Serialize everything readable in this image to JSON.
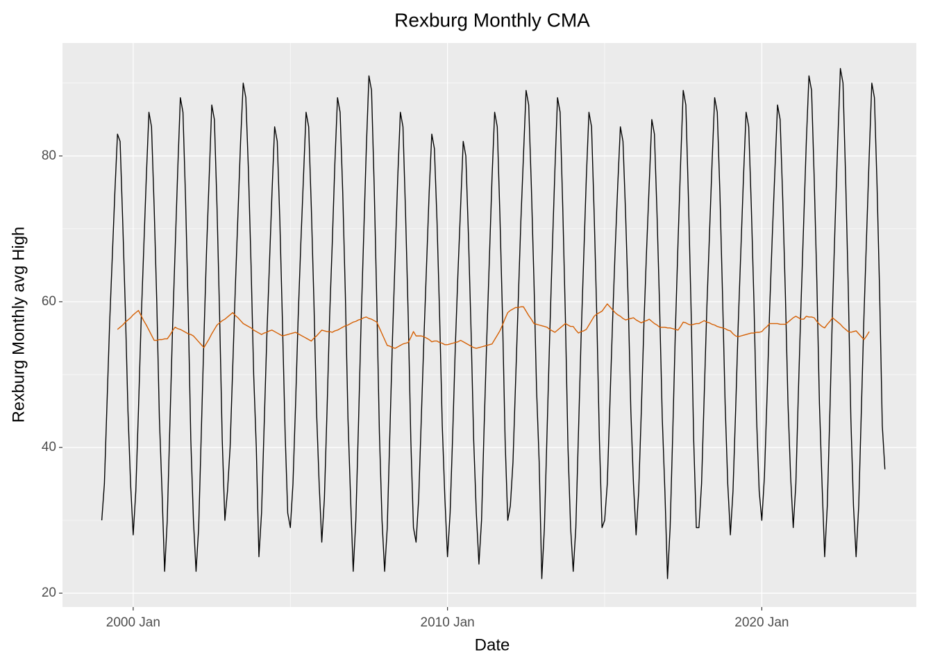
{
  "chart_data": {
    "type": "line",
    "title": "Rexburg Monthly CMA",
    "x_label": "Date",
    "y_label": "Rexburg Monthly avg High",
    "x": [
      "1999 Jan",
      "1999 Feb",
      "1999 Mar",
      "1999 Apr",
      "1999 May",
      "1999 Jun",
      "1999 Jul",
      "1999 Aug",
      "1999 Sep",
      "1999 Oct",
      "1999 Nov",
      "1999 Dec",
      "2000 Jan",
      "2000 Feb",
      "2000 Mar",
      "2000 Apr",
      "2000 May",
      "2000 Jun",
      "2000 Jul",
      "2000 Aug",
      "2000 Sep",
      "2000 Oct",
      "2000 Nov",
      "2000 Dec",
      "2001 Jan",
      "2001 Feb",
      "2001 Mar",
      "2001 Apr",
      "2001 May",
      "2001 Jun",
      "2001 Jul",
      "2001 Aug",
      "2001 Sep",
      "2001 Oct",
      "2001 Nov",
      "2001 Dec",
      "2002 Jan",
      "2002 Feb",
      "2002 Mar",
      "2002 Apr",
      "2002 May",
      "2002 Jun",
      "2002 Jul",
      "2002 Aug",
      "2002 Sep",
      "2002 Oct",
      "2002 Nov",
      "2002 Dec",
      "2003 Jan",
      "2003 Feb",
      "2003 Mar",
      "2003 Apr",
      "2003 May",
      "2003 Jun",
      "2003 Jul",
      "2003 Aug",
      "2003 Sep",
      "2003 Oct",
      "2003 Nov",
      "2003 Dec",
      "2004 Jan",
      "2004 Feb",
      "2004 Mar",
      "2004 Apr",
      "2004 May",
      "2004 Jun",
      "2004 Jul",
      "2004 Aug",
      "2004 Sep",
      "2004 Oct",
      "2004 Nov",
      "2004 Dec",
      "2005 Jan",
      "2005 Feb",
      "2005 Mar",
      "2005 Apr",
      "2005 May",
      "2005 Jun",
      "2005 Jul",
      "2005 Aug",
      "2005 Sep",
      "2005 Oct",
      "2005 Nov",
      "2005 Dec",
      "2006 Jan",
      "2006 Feb",
      "2006 Mar",
      "2006 Apr",
      "2006 May",
      "2006 Jun",
      "2006 Jul",
      "2006 Aug",
      "2006 Sep",
      "2006 Oct",
      "2006 Nov",
      "2006 Dec",
      "2007 Jan",
      "2007 Feb",
      "2007 Mar",
      "2007 Apr",
      "2007 May",
      "2007 Jun",
      "2007 Jul",
      "2007 Aug",
      "2007 Sep",
      "2007 Oct",
      "2007 Nov",
      "2007 Dec",
      "2008 Jan",
      "2008 Feb",
      "2008 Mar",
      "2008 Apr",
      "2008 May",
      "2008 Jun",
      "2008 Jul",
      "2008 Aug",
      "2008 Sep",
      "2008 Oct",
      "2008 Nov",
      "2008 Dec",
      "2009 Jan",
      "2009 Feb",
      "2009 Mar",
      "2009 Apr",
      "2009 May",
      "2009 Jun",
      "2009 Jul",
      "2009 Aug",
      "2009 Sep",
      "2009 Oct",
      "2009 Nov",
      "2009 Dec",
      "2010 Jan",
      "2010 Feb",
      "2010 Mar",
      "2010 Apr",
      "2010 May",
      "2010 Jun",
      "2010 Jul",
      "2010 Aug",
      "2010 Sep",
      "2010 Oct",
      "2010 Nov",
      "2010 Dec",
      "2011 Jan",
      "2011 Feb",
      "2011 Mar",
      "2011 Apr",
      "2011 May",
      "2011 Jun",
      "2011 Jul",
      "2011 Aug",
      "2011 Sep",
      "2011 Oct",
      "2011 Nov",
      "2011 Dec",
      "2012 Jan",
      "2012 Feb",
      "2012 Mar",
      "2012 Apr",
      "2012 May",
      "2012 Jun",
      "2012 Jul",
      "2012 Aug",
      "2012 Sep",
      "2012 Oct",
      "2012 Nov",
      "2012 Dec",
      "2013 Jan",
      "2013 Feb",
      "2013 Mar",
      "2013 Apr",
      "2013 May",
      "2013 Jun",
      "2013 Jul",
      "2013 Aug",
      "2013 Sep",
      "2013 Oct",
      "2013 Nov",
      "2013 Dec",
      "2014 Jan",
      "2014 Feb",
      "2014 Mar",
      "2014 Apr",
      "2014 May",
      "2014 Jun",
      "2014 Jul",
      "2014 Aug",
      "2014 Sep",
      "2014 Oct",
      "2014 Nov",
      "2014 Dec",
      "2015 Jan",
      "2015 Feb",
      "2015 Mar",
      "2015 Apr",
      "2015 May",
      "2015 Jun",
      "2015 Jul",
      "2015 Aug",
      "2015 Sep",
      "2015 Oct",
      "2015 Nov",
      "2015 Dec",
      "2016 Jan",
      "2016 Feb",
      "2016 Mar",
      "2016 Apr",
      "2016 May",
      "2016 Jun",
      "2016 Jul",
      "2016 Aug",
      "2016 Sep",
      "2016 Oct",
      "2016 Nov",
      "2016 Dec",
      "2017 Jan",
      "2017 Feb",
      "2017 Mar",
      "2017 Apr",
      "2017 May",
      "2017 Jun",
      "2017 Jul",
      "2017 Aug",
      "2017 Sep",
      "2017 Oct",
      "2017 Nov",
      "2017 Dec",
      "2018 Jan",
      "2018 Feb",
      "2018 Mar",
      "2018 Apr",
      "2018 May",
      "2018 Jun",
      "2018 Jul",
      "2018 Aug",
      "2018 Sep",
      "2018 Oct",
      "2018 Nov",
      "2018 Dec",
      "2019 Jan",
      "2019 Feb",
      "2019 Mar",
      "2019 Apr",
      "2019 May",
      "2019 Jun",
      "2019 Jul",
      "2019 Aug",
      "2019 Sep",
      "2019 Oct",
      "2019 Nov",
      "2019 Dec",
      "2020 Jan",
      "2020 Feb",
      "2020 Mar",
      "2020 Apr",
      "2020 May",
      "2020 Jun",
      "2020 Jul",
      "2020 Aug",
      "2020 Sep",
      "2020 Oct",
      "2020 Nov",
      "2020 Dec",
      "2021 Jan",
      "2021 Feb",
      "2021 Mar",
      "2021 Apr",
      "2021 May",
      "2021 Jun",
      "2021 Jul",
      "2021 Aug",
      "2021 Sep",
      "2021 Oct",
      "2021 Nov",
      "2021 Dec",
      "2022 Jan",
      "2022 Feb",
      "2022 Mar",
      "2022 Apr",
      "2022 May",
      "2022 Jun",
      "2022 Jul",
      "2022 Aug",
      "2022 Sep",
      "2022 Oct",
      "2022 Nov",
      "2022 Dec",
      "2023 Jan",
      "2023 Feb",
      "2023 Mar",
      "2023 Apr",
      "2023 May",
      "2023 Jun",
      "2023 Jul",
      "2023 Aug",
      "2023 Sep",
      "2023 Oct",
      "2023 Nov",
      "2023 Dec"
    ],
    "series": [
      {
        "color": "#000000",
        "values": [
          30,
          35,
          46,
          57,
          66,
          75,
          83,
          82,
          71,
          59,
          45,
          35,
          28,
          34,
          45,
          57,
          67,
          77,
          86,
          84,
          73,
          60,
          44,
          34,
          23,
          30,
          43,
          56,
          67,
          78,
          88,
          86,
          74,
          59,
          41,
          30,
          23,
          29,
          42,
          55,
          67,
          77,
          87,
          85,
          73,
          58,
          41,
          30,
          34,
          40,
          51,
          62,
          72,
          82,
          90,
          88,
          78,
          65,
          50,
          40,
          25,
          31,
          43,
          55,
          65,
          75,
          84,
          82,
          71,
          57,
          42,
          31,
          29,
          35,
          46,
          58,
          68,
          77,
          86,
          84,
          73,
          60,
          45,
          35,
          27,
          33,
          45,
          58,
          68,
          79,
          88,
          86,
          75,
          61,
          44,
          33,
          23,
          30,
          43,
          57,
          69,
          81,
          91,
          89,
          76,
          60,
          42,
          30,
          23,
          29,
          42,
          55,
          66,
          77,
          86,
          84,
          72,
          58,
          41,
          29,
          27,
          33,
          44,
          55,
          65,
          75,
          83,
          81,
          71,
          58,
          43,
          33,
          25,
          31,
          42,
          54,
          64,
          73,
          82,
          80,
          69,
          56,
          41,
          31,
          24,
          30,
          43,
          55,
          66,
          77,
          86,
          84,
          72,
          58,
          41,
          30,
          32,
          38,
          49,
          60,
          71,
          80,
          89,
          87,
          76,
          63,
          48,
          38,
          22,
          29,
          42,
          55,
          67,
          78,
          88,
          86,
          73,
          58,
          40,
          29,
          23,
          29,
          42,
          55,
          66,
          77,
          86,
          84,
          72,
          58,
          41,
          29,
          30,
          35,
          46,
          57,
          67,
          76,
          84,
          82,
          72,
          60,
          45,
          35,
          28,
          34,
          45,
          57,
          67,
          76,
          85,
          83,
          72,
          59,
          44,
          34,
          22,
          29,
          42,
          56,
          68,
          79,
          89,
          87,
          74,
          59,
          41,
          29,
          29,
          35,
          47,
          59,
          69,
          79,
          88,
          86,
          75,
          61,
          46,
          35,
          28,
          34,
          45,
          57,
          67,
          77,
          86,
          84,
          73,
          60,
          44,
          34,
          30,
          36,
          47,
          59,
          69,
          78,
          87,
          85,
          74,
          61,
          46,
          36,
          29,
          35,
          48,
          60,
          71,
          82,
          91,
          89,
          77,
          63,
          46,
          35,
          25,
          32,
          45,
          59,
          71,
          82,
          92,
          90,
          77,
          62,
          44,
          32,
          25,
          32,
          45,
          58,
          69,
          80,
          90,
          88,
          76,
          61,
          43,
          37
        ]
      },
      {
        "color": "#d55e00",
        "values": [
          null,
          null,
          null,
          null,
          null,
          null,
          56.2,
          56.5,
          56.8,
          57.2,
          57.5,
          57.8,
          58.2,
          58.5,
          58.8,
          58.1,
          57.4,
          56.8,
          56.1,
          55.4,
          54.7,
          54.7,
          54.8,
          54.8,
          54.9,
          54.9,
          55.4,
          56,
          56.5,
          56.3,
          56.2,
          56,
          55.8,
          55.6,
          55.5,
          55.3,
          54.9,
          54.5,
          54.1,
          53.7,
          54.3,
          54.9,
          55.6,
          56.2,
          56.8,
          57.1,
          57.4,
          57.6,
          57.9,
          58.2,
          58.5,
          58.1,
          57.8,
          57.4,
          57,
          56.8,
          56.6,
          56.4,
          56.1,
          55.9,
          55.7,
          55.5,
          55.7,
          55.8,
          56,
          56.1,
          55.9,
          55.7,
          55.5,
          55.3,
          55.4,
          55.5,
          55.6,
          55.7,
          55.8,
          55.6,
          55.4,
          55.2,
          55,
          54.8,
          54.6,
          55,
          55.3,
          55.7,
          56.1,
          56,
          55.9,
          55.9,
          55.8,
          56,
          56.1,
          56.3,
          56.5,
          56.7,
          56.8,
          57,
          57.2,
          57.3,
          57.5,
          57.6,
          57.8,
          57.9,
          57.7,
          57.6,
          57.4,
          57.2,
          56.4,
          55.6,
          54.8,
          54,
          53.9,
          53.7,
          53.6,
          53.8,
          54,
          54.2,
          54.3,
          54.4,
          55.1,
          55.9,
          55.3,
          55.3,
          55.3,
          55.2,
          55,
          54.8,
          54.5,
          54.6,
          54.6,
          54.4,
          54.3,
          54.1,
          54.1,
          54.2,
          54.3,
          54.4,
          54.5,
          54.7,
          54.5,
          54.3,
          54.1,
          53.9,
          53.7,
          53.6,
          53.7,
          53.8,
          53.9,
          54,
          54.1,
          54.2,
          54.8,
          55.4,
          56,
          56.8,
          57.7,
          58.5,
          58.8,
          59,
          59.2,
          59.2,
          59.3,
          59.3,
          58.7,
          58.1,
          57.6,
          57,
          56.9,
          56.8,
          56.7,
          56.6,
          56.5,
          56.2,
          56,
          55.8,
          56.1,
          56.4,
          56.7,
          57,
          56.8,
          56.6,
          56.6,
          56.1,
          55.7,
          55.9,
          56,
          56.2,
          56.8,
          57.4,
          58,
          58.3,
          58.5,
          58.7,
          59.2,
          59.7,
          59.3,
          58.9,
          58.5,
          58.2,
          58,
          57.7,
          57.5,
          57.6,
          57.7,
          57.8,
          57.5,
          57.3,
          57.1,
          57.3,
          57.4,
          57.6,
          57.3,
          57,
          56.8,
          56.5,
          56.5,
          56.5,
          56.4,
          56.4,
          56.3,
          56.2,
          56.1,
          56.6,
          57.2,
          57.1,
          56.9,
          56.8,
          56.9,
          57,
          57,
          57.2,
          57.4,
          57.2,
          57.1,
          56.9,
          56.8,
          56.6,
          56.5,
          56.4,
          56.3,
          56.1,
          56,
          55.6,
          55.3,
          55.2,
          55.3,
          55.4,
          55.5,
          55.6,
          55.7,
          55.7,
          55.8,
          55.8,
          55.9,
          56.3,
          56.6,
          57,
          57,
          57,
          57,
          56.9,
          56.9,
          56.9,
          57.2,
          57.5,
          57.8,
          58,
          57.8,
          57.6,
          57.6,
          58,
          57.9,
          57.9,
          57.8,
          57.3,
          56.9,
          56.6,
          56.4,
          56.9,
          57.3,
          57.8,
          57.5,
          57.2,
          56.9,
          56.5,
          56.2,
          55.9,
          55.8,
          55.9,
          56,
          55.6,
          55.2,
          54.8,
          55.3,
          55.9,
          null,
          null,
          null,
          null,
          null,
          null
        ]
      }
    ],
    "xlim": [
      "1997 Oct",
      "2024 Dec"
    ],
    "xticks": [
      "2000 Jan",
      "2010 Jan",
      "2020 Jan"
    ],
    "ylim": [
      18.1,
      95.5
    ],
    "yticks": [
      20,
      40,
      60,
      80
    ],
    "grid": true
  }
}
